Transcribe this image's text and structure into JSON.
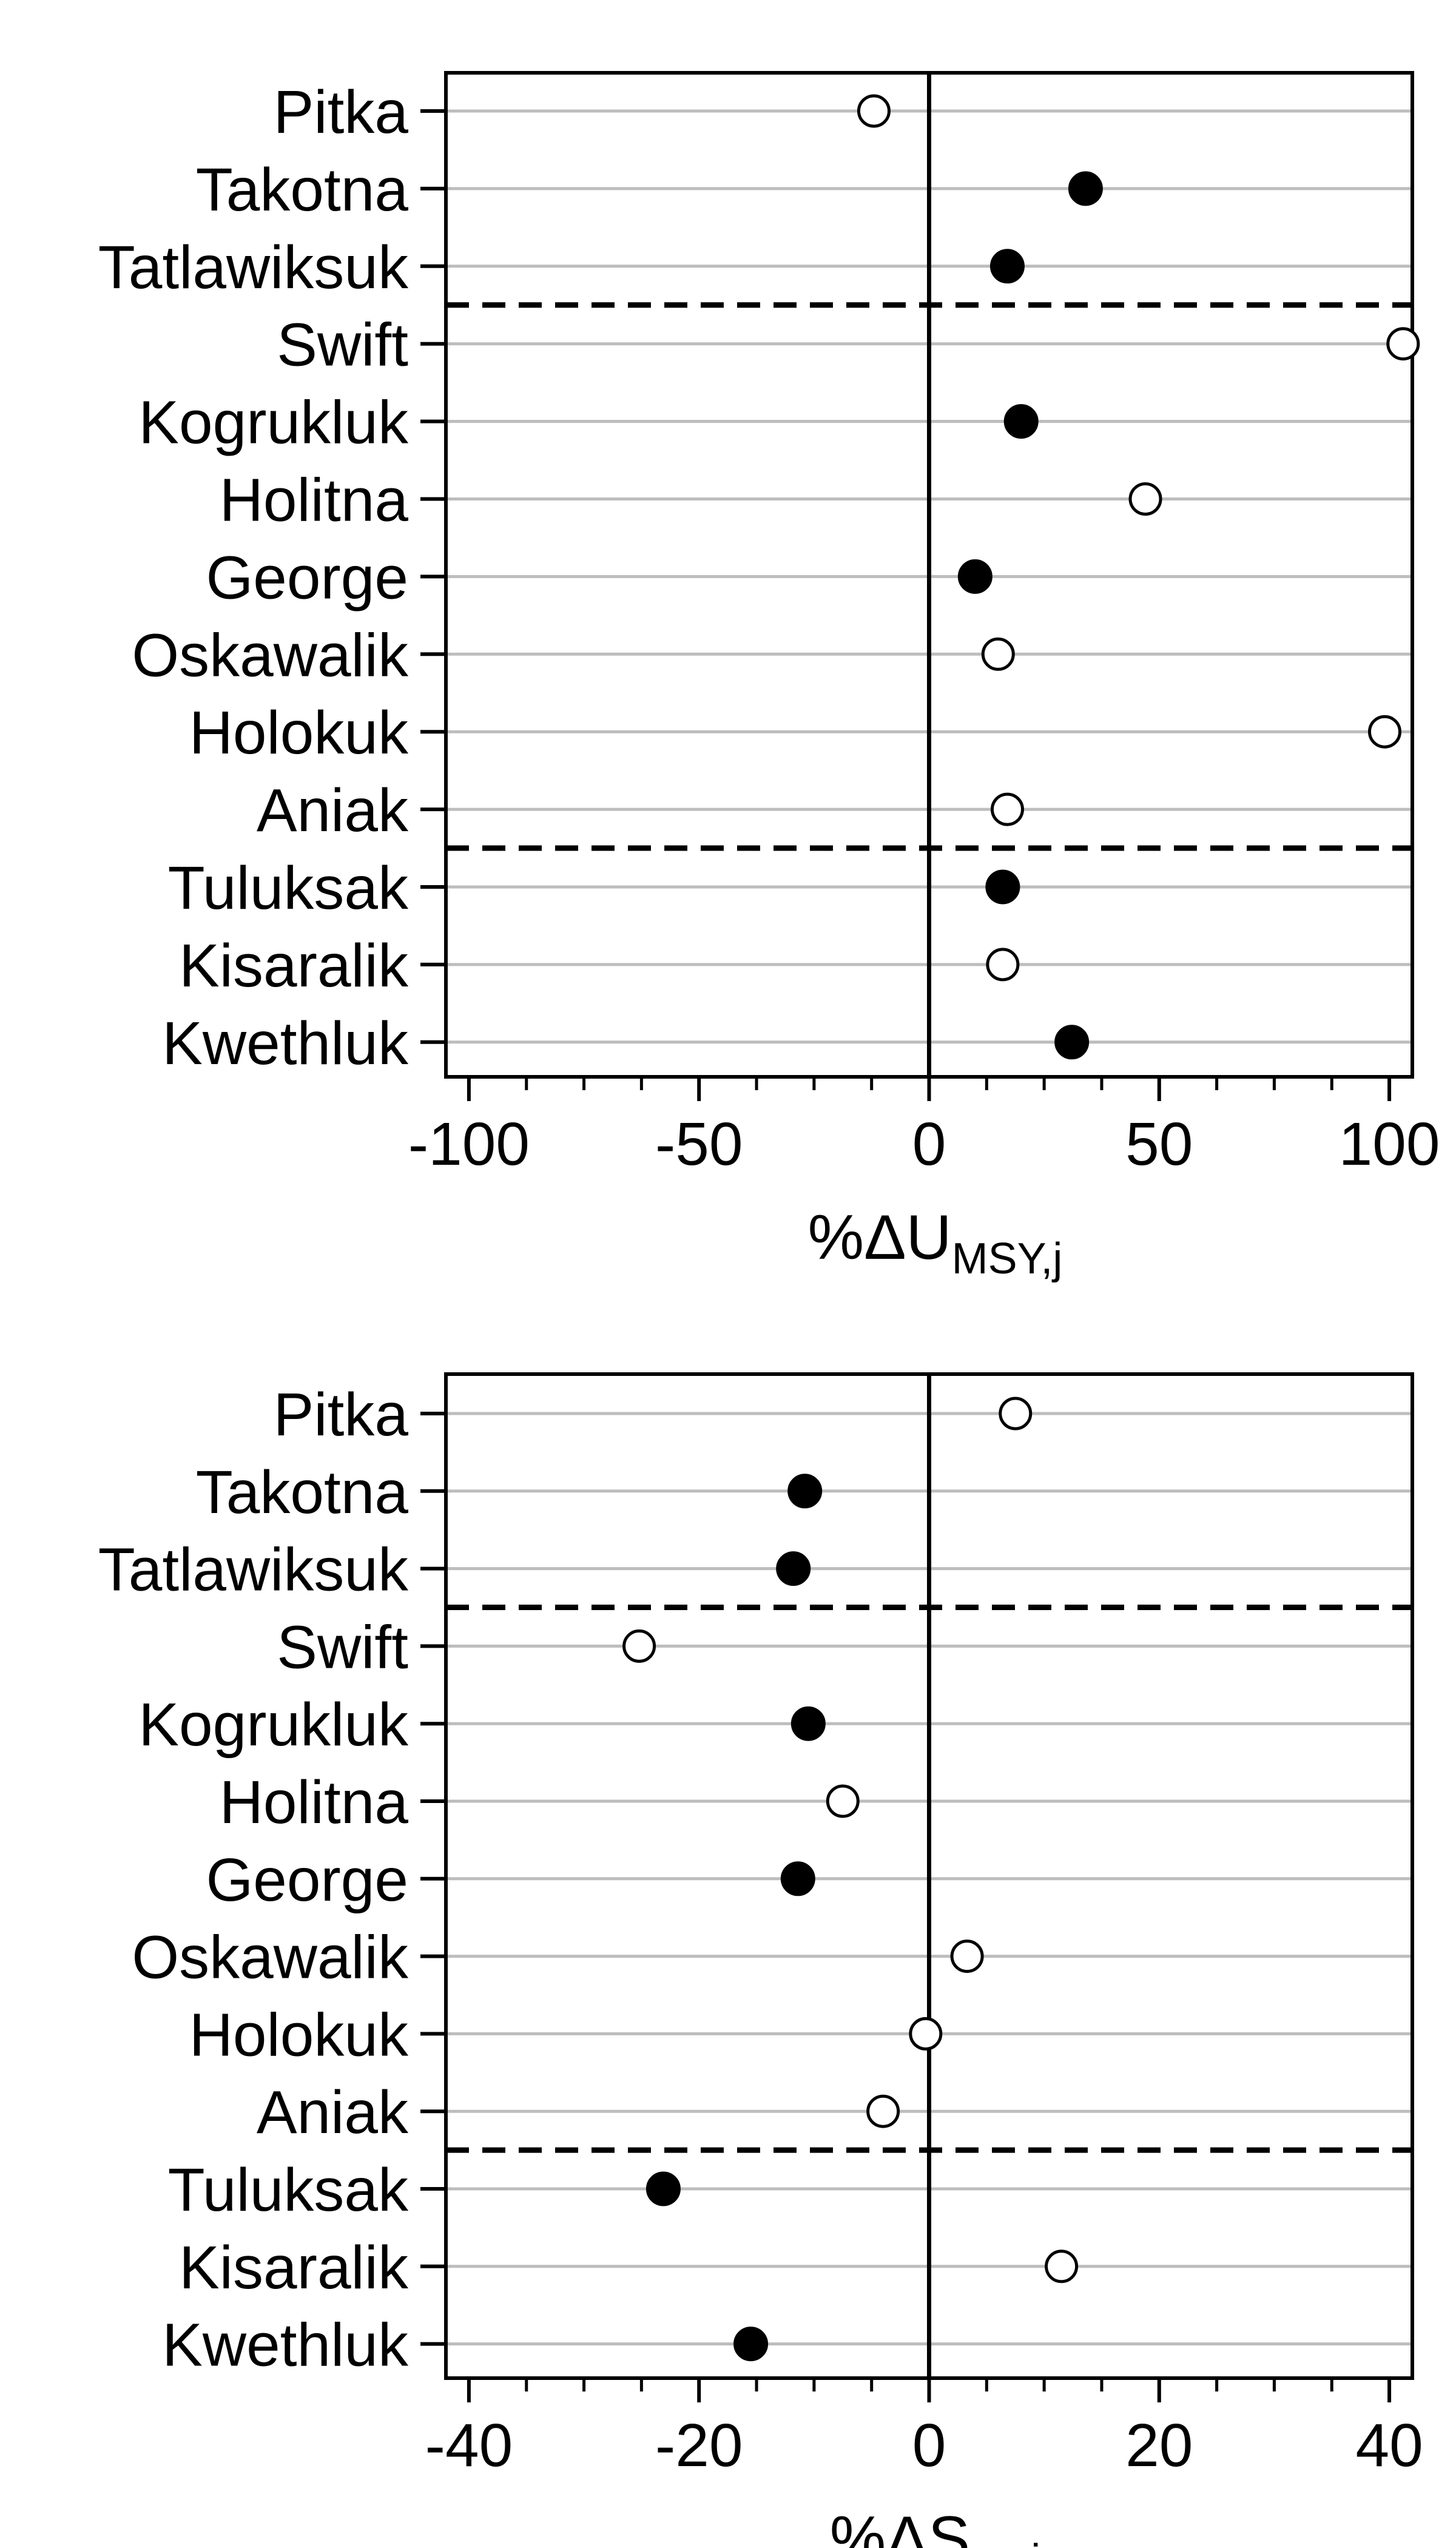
{
  "colors": {
    "axis": "#000000",
    "grid": "#bdbdbd",
    "zero_line": "#000000",
    "separator": "#000000",
    "filled_marker": "#000000",
    "open_marker_fill": "#ffffff"
  },
  "chart_data": [
    {
      "type": "scatter",
      "orientation": "horizontal-dot-plot",
      "xlabel": "%ΔU",
      "xlabel_subscript": "MSY,j",
      "xlim": [
        -105,
        105
      ],
      "xticks": [
        -100,
        -50,
        0,
        50,
        100
      ],
      "xtick_labels": [
        "-100",
        "-50",
        "0",
        "50",
        "100"
      ],
      "minor_tick_step": 12.5,
      "grid": "horizontal",
      "reference_line_x": 0,
      "group_separators_after": [
        "Tatlawiksuk",
        "Aniak"
      ],
      "categories": [
        "Pitka",
        "Takotna",
        "Tatlawiksuk",
        "Swift",
        "Kogrukluk",
        "Holitna",
        "George",
        "Oskawalik",
        "Holokuk",
        "Aniak",
        "Tuluksak",
        "Kisaralik",
        "Kwethluk"
      ],
      "values": [
        -12,
        34,
        17,
        103,
        20,
        47,
        10,
        15,
        99,
        17,
        16,
        16,
        31
      ],
      "filled": [
        false,
        true,
        true,
        false,
        true,
        false,
        true,
        false,
        false,
        false,
        true,
        false,
        true
      ]
    },
    {
      "type": "scatter",
      "orientation": "horizontal-dot-plot",
      "xlabel": "%ΔS",
      "xlabel_subscript": "eq,j",
      "xlim": [
        -42,
        42
      ],
      "xticks": [
        -40,
        -20,
        0,
        20,
        40
      ],
      "xtick_labels": [
        "-40",
        "-20",
        "0",
        "20",
        "40"
      ],
      "minor_tick_step": 5,
      "grid": "horizontal",
      "reference_line_x": 0,
      "group_separators_after": [
        "Tatlawiksuk",
        "Aniak"
      ],
      "categories": [
        "Pitka",
        "Takotna",
        "Tatlawiksuk",
        "Swift",
        "Kogrukluk",
        "Holitna",
        "George",
        "Oskawalik",
        "Holokuk",
        "Aniak",
        "Tuluksak",
        "Kisaralik",
        "Kwethluk"
      ],
      "values": [
        7.5,
        -10.8,
        -11.8,
        -25.2,
        -10.5,
        -7.5,
        -11.4,
        3.3,
        -0.3,
        -4,
        -23.1,
        11.5,
        -15.5
      ],
      "filled": [
        false,
        true,
        true,
        false,
        true,
        false,
        true,
        false,
        false,
        false,
        true,
        false,
        true
      ]
    }
  ]
}
